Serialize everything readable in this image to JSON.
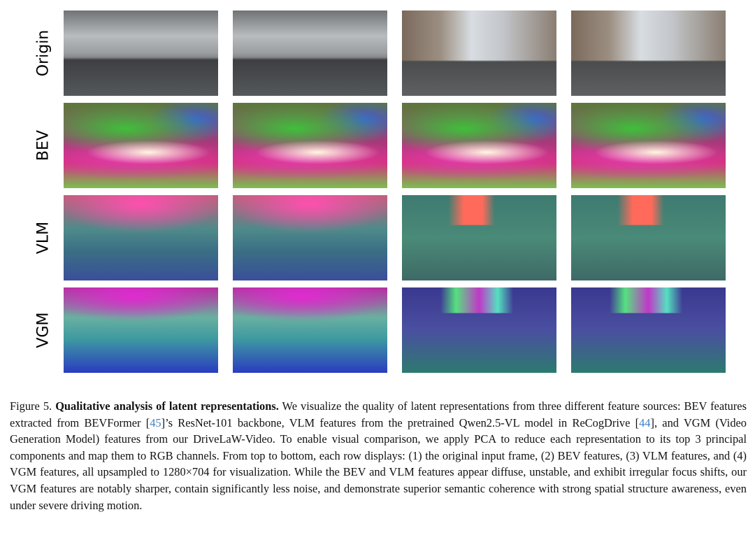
{
  "figure": {
    "rows": [
      {
        "label": "Origin"
      },
      {
        "label": "BEV"
      },
      {
        "label": "VLM"
      },
      {
        "label": "VGM"
      }
    ],
    "caption": {
      "label": "Figure 5.",
      "title": "Qualitative analysis of latent representations.",
      "parts": [
        "We visualize the quality of latent representations from three different feature sources: BEV features extracted from BEVFormer [",
        "45",
        "]’s ResNet-101 backbone, VLM features from the pretrained Qwen2.5-VL model in ReCogDrive [",
        "44",
        "], and VGM (Video Generation Model) features from our DriveLaW-Video. To enable visual comparison, we apply PCA to reduce each representation to its top 3 principal components and map them to RGB channels. From top to bottom, each row displays: (1) the original input frame, (2) BEV features, (3) VLM features, and (4) VGM features, all upsampled to 1280×704 for visualization. While the BEV and VLM features appear diffuse, unstable, and exhibit irregular focus shifts, our VGM features are notably sharper, contain significantly less noise, and demonstrate superior semantic coherence with strong spatial structure awareness, even under severe driving motion."
      ]
    }
  }
}
